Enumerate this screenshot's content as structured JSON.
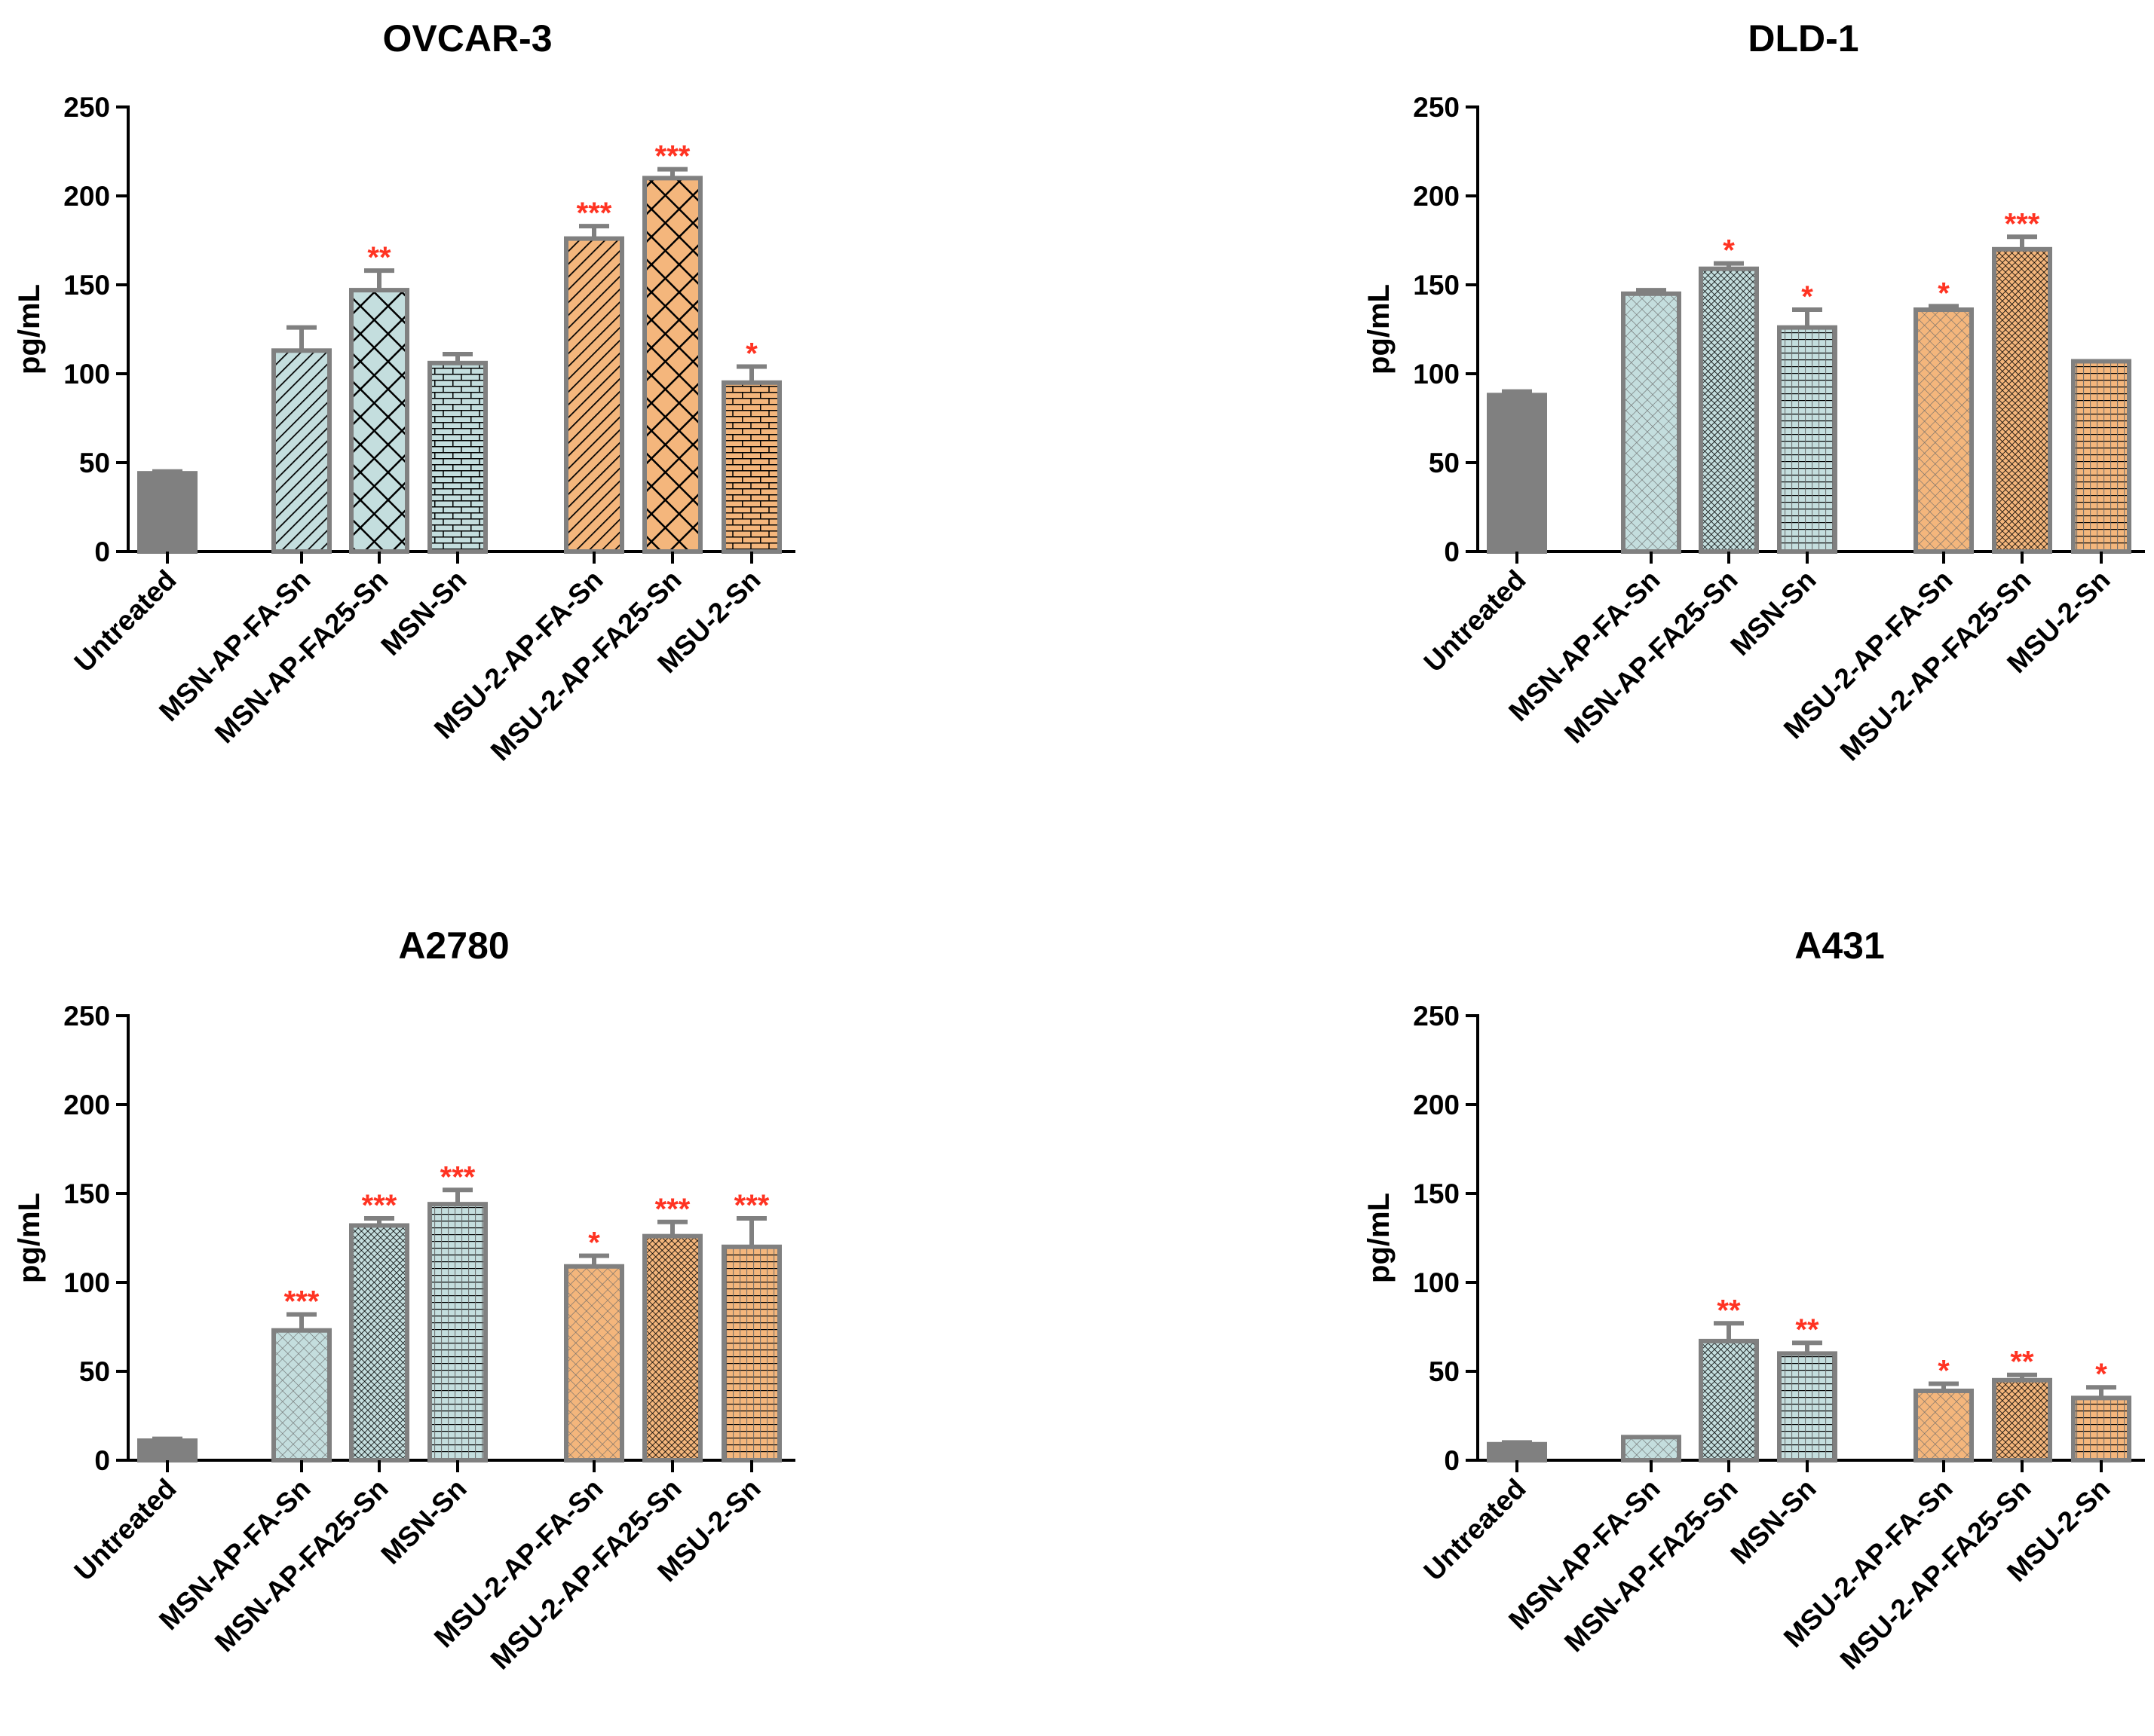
{
  "figure": {
    "colors": {
      "untreated": "#808080",
      "msn": "#c4dede",
      "msu": "#f4b67c",
      "outline": "#808080",
      "axis": "#000000",
      "significance": "#ff3322"
    }
  },
  "chart_data": [
    {
      "type": "bar",
      "title": "OVCAR-3",
      "ylabel": "pg/mL",
      "xlabel": "",
      "ylim": [
        0,
        250
      ],
      "yticks": [
        0,
        50,
        100,
        150,
        200,
        250
      ],
      "categories": [
        "Untreated",
        "MSN-AP-FA-Sn",
        "MSN-AP-FA25-Sn",
        "MSN-Sn",
        "MSU-2-AP-FA-Sn",
        "MSU-2-AP-FA25-Sn",
        "MSU-2-Sn"
      ],
      "values": [
        44,
        113,
        147,
        106,
        176,
        210,
        95
      ],
      "errors": [
        1,
        13,
        11,
        5,
        7,
        5,
        9
      ],
      "significance": [
        "",
        "",
        "**",
        "",
        "***",
        "***",
        "*"
      ],
      "patterns": [
        "solid",
        "diag",
        "cross",
        "brick",
        "diag",
        "cross",
        "brick"
      ],
      "groups": [
        "untreated",
        "msn",
        "msn",
        "msn",
        "msu",
        "msu",
        "msu"
      ]
    },
    {
      "type": "bar",
      "title": "DLD-1",
      "ylabel": "pg/mL",
      "xlabel": "",
      "ylim": [
        0,
        250
      ],
      "yticks": [
        0,
        50,
        100,
        150,
        200,
        250
      ],
      "categories": [
        "Untreated",
        "MSN-AP-FA-Sn",
        "MSN-AP-FA25-Sn",
        "MSN-Sn",
        "MSU-2-AP-FA-Sn",
        "MSU-2-AP-FA25-Sn",
        "MSU-2-Sn"
      ],
      "values": [
        88,
        145,
        159,
        126,
        136,
        170,
        107
      ],
      "errors": [
        2,
        2,
        3,
        10,
        2,
        7,
        0
      ],
      "significance": [
        "",
        "",
        "*",
        "*",
        "*",
        "***",
        ""
      ],
      "patterns": [
        "solid",
        "hatch",
        "mesh",
        "grid",
        "hatch",
        "mesh",
        "grid"
      ],
      "groups": [
        "untreated",
        "msn",
        "msn",
        "msn",
        "msu",
        "msu",
        "msu"
      ]
    },
    {
      "type": "bar",
      "title": "A2780",
      "ylabel": "pg/mL",
      "xlabel": "",
      "ylim": [
        0,
        250
      ],
      "yticks": [
        0,
        50,
        100,
        150,
        200,
        250
      ],
      "categories": [
        "Untreated",
        "MSN-AP-FA-Sn",
        "MSN-AP-FA25-Sn",
        "MSN-Sn",
        "MSU-2-AP-FA-Sn",
        "MSU-2-AP-FA25-Sn",
        "MSU-2-Sn"
      ],
      "values": [
        11,
        73,
        132,
        144,
        109,
        126,
        120
      ],
      "errors": [
        1,
        9,
        4,
        8,
        6,
        8,
        16
      ],
      "significance": [
        "",
        "***",
        "***",
        "***",
        "*",
        "***",
        "***"
      ],
      "patterns": [
        "solid",
        "hatch",
        "mesh",
        "grid",
        "hatch",
        "mesh",
        "grid"
      ],
      "groups": [
        "untreated",
        "msn",
        "msn",
        "msn",
        "msu",
        "msu",
        "msu"
      ]
    },
    {
      "type": "bar",
      "title": "A431",
      "ylabel": "pg/mL",
      "xlabel": "",
      "ylim": [
        0,
        250
      ],
      "yticks": [
        0,
        50,
        100,
        150,
        200,
        250
      ],
      "categories": [
        "Untreated",
        "MSN-AP-FA-Sn",
        "MSN-AP-FA25-Sn",
        "MSN-Sn",
        "MSU-2-AP-FA-Sn",
        "MSU-2-AP-FA25-Sn",
        "MSU-2-Sn"
      ],
      "values": [
        9,
        13,
        67,
        60,
        39,
        45,
        35
      ],
      "errors": [
        1,
        0,
        10,
        6,
        4,
        3,
        6
      ],
      "significance": [
        "",
        "",
        "**",
        "**",
        "*",
        "**",
        "*"
      ],
      "patterns": [
        "solid",
        "hatch",
        "mesh",
        "grid",
        "hatch",
        "mesh",
        "grid"
      ],
      "groups": [
        "untreated",
        "msn",
        "msn",
        "msn",
        "msu",
        "msu",
        "msu"
      ]
    }
  ]
}
